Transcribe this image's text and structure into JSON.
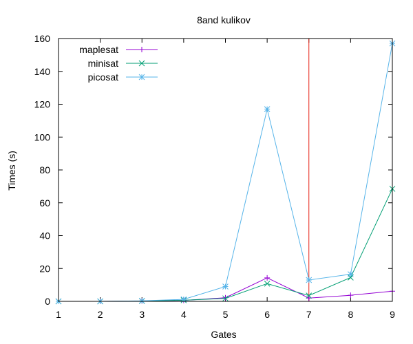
{
  "chart_data": {
    "type": "line",
    "title": "8and kulikov",
    "xlabel": "Gates",
    "ylabel": "Times (s)",
    "xlim": [
      1,
      9
    ],
    "ylim": [
      0,
      160
    ],
    "x_ticks": [
      "1",
      "2",
      "3",
      "4",
      "5",
      "6",
      "7",
      "8",
      "9"
    ],
    "y_ticks": [
      "0",
      "20",
      "40",
      "60",
      "80",
      "100",
      "120",
      "140",
      "160"
    ],
    "x": [
      1,
      2,
      3,
      4,
      5,
      6,
      7,
      8,
      9
    ],
    "grid": false,
    "legend_position": "top-left",
    "series": [
      {
        "name": "maplesat",
        "color": "#9400d3",
        "marker": "plus",
        "values": [
          0,
          0,
          0.2,
          0.6,
          2.2,
          14.3,
          2.0,
          3.7,
          6.2
        ]
      },
      {
        "name": "minisat",
        "color": "#009e73",
        "marker": "cross",
        "values": [
          0,
          0,
          0.2,
          0.7,
          1.8,
          10.8,
          3.5,
          14.5,
          68.5
        ]
      },
      {
        "name": "picosat",
        "color": "#56b4e9",
        "marker": "star",
        "values": [
          0,
          0,
          0.3,
          1.2,
          9.0,
          117.0,
          13.0,
          16.5,
          157.0
        ]
      }
    ],
    "vertical_line": {
      "x": 7,
      "color": "#e51e10"
    }
  }
}
